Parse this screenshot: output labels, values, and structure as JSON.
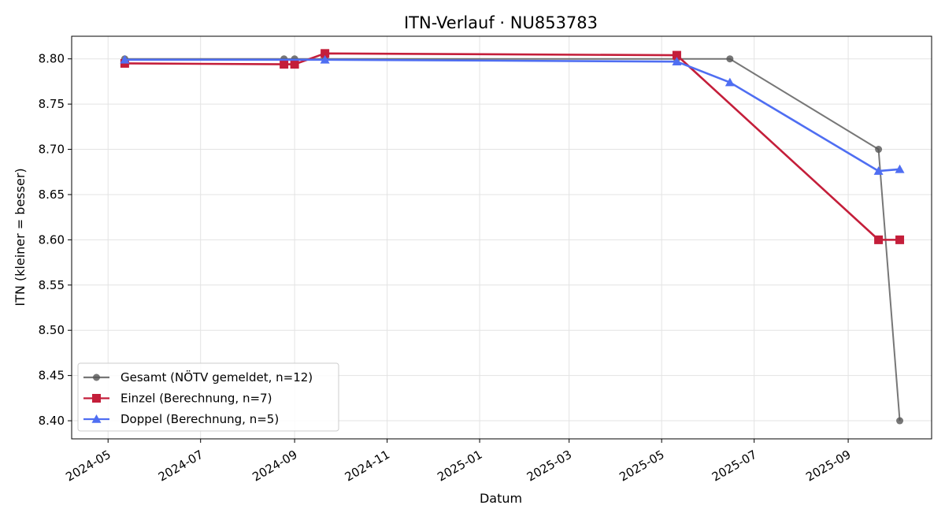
{
  "chart_data": {
    "type": "line",
    "title": "ITN-Verlauf · NU853783",
    "xlabel": "Datum",
    "ylabel": "ITN  (kleiner = besser)",
    "x_type": "date",
    "xlim": [
      "2024-04-07",
      "2025-10-26"
    ],
    "ylim": [
      8.38,
      8.825
    ],
    "grid": true,
    "legend_position": "lower-left",
    "x_ticks": [
      "2024-05-01",
      "2024-07-01",
      "2024-09-01",
      "2024-11-01",
      "2025-01-01",
      "2025-03-01",
      "2025-05-01",
      "2025-07-01",
      "2025-09-01"
    ],
    "x_tick_labels": [
      "2024-05",
      "2024-07",
      "2024-09",
      "2024-11",
      "2025-01",
      "2025-03",
      "2025-05",
      "2025-07",
      "2025-09"
    ],
    "y_ticks": [
      8.4,
      8.45,
      8.5,
      8.55,
      8.6,
      8.65,
      8.7,
      8.75,
      8.8
    ],
    "y_tick_labels": [
      "8.40",
      "8.45",
      "8.50",
      "8.55",
      "8.60",
      "8.65",
      "8.70",
      "8.75",
      "8.80"
    ],
    "series": [
      {
        "name": "Gesamt (NÖTV gemeldet, n=12)",
        "color": "#555555",
        "marker": "circle",
        "points": [
          {
            "x": "2024-05-12",
            "y": 8.8
          },
          {
            "x": "2024-08-25",
            "y": 8.8
          },
          {
            "x": "2024-09-01",
            "y": 8.8
          },
          {
            "x": "2024-09-21",
            "y": 8.8
          },
          {
            "x": "2025-05-11",
            "y": 8.8
          },
          {
            "x": "2025-06-15",
            "y": 8.8
          },
          {
            "x": "2025-09-21",
            "y": 8.7
          },
          {
            "x": "2025-10-05",
            "y": 8.4
          }
        ]
      },
      {
        "name": "Einzel (Berechnung, n=7)",
        "color": "#c41e3a",
        "marker": "square",
        "points": [
          {
            "x": "2024-05-12",
            "y": 8.795
          },
          {
            "x": "2024-08-25",
            "y": 8.794
          },
          {
            "x": "2024-09-01",
            "y": 8.794
          },
          {
            "x": "2024-09-21",
            "y": 8.806
          },
          {
            "x": "2025-05-11",
            "y": 8.804
          },
          {
            "x": "2025-09-21",
            "y": 8.6
          },
          {
            "x": "2025-10-05",
            "y": 8.6
          }
        ]
      },
      {
        "name": "Doppel (Berechnung, n=5)",
        "color": "#4f6ef2",
        "marker": "triangle",
        "points": [
          {
            "x": "2024-05-12",
            "y": 8.799
          },
          {
            "x": "2024-09-21",
            "y": 8.799
          },
          {
            "x": "2025-05-11",
            "y": 8.797
          },
          {
            "x": "2025-06-15",
            "y": 8.774
          },
          {
            "x": "2025-09-21",
            "y": 8.676
          },
          {
            "x": "2025-10-05",
            "y": 8.678
          }
        ]
      }
    ]
  }
}
